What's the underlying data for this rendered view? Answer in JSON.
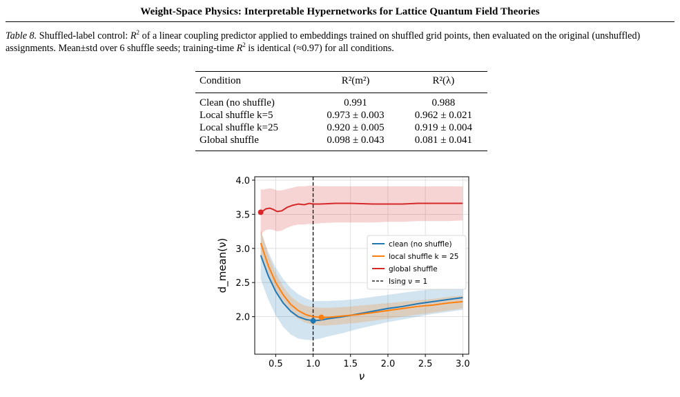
{
  "header": {
    "title": "Weight-Space Physics: Interpretable Hypernetworks for Lattice Quantum Field Theories"
  },
  "caption": {
    "label": "Table 8.",
    "p1": " Shuffled-label control: ",
    "r2": "R",
    "p2": " of a linear coupling predictor applied to embeddings trained on shuffled grid points, then evaluated on the original (unshuffled) assignments. Mean±std over 6 shuffle seeds; training-time ",
    "p3": " is identical (≈0.97) for all conditions."
  },
  "table": {
    "headers": [
      "Condition",
      "R²(m²)",
      "R²(λ)"
    ],
    "rows": [
      [
        "Clean (no shuffle)",
        "0.991",
        "0.988"
      ],
      [
        "Local shuffle k=5",
        "0.973 ± 0.003",
        "0.962 ± 0.021"
      ],
      [
        "Local shuffle k=25",
        "0.920 ± 0.005",
        "0.919 ± 0.004"
      ],
      [
        "Global shuffle",
        "0.098 ± 0.043",
        "0.081 ± 0.041"
      ]
    ]
  },
  "chart_data": {
    "type": "line",
    "xlabel": "ν",
    "ylabel": "d_mean(ν)",
    "xlim": [
      0.22,
      3.08
    ],
    "ylim": [
      1.45,
      4.05
    ],
    "xticks": [
      0.5,
      1.0,
      1.5,
      2.0,
      2.5,
      3.0
    ],
    "yticks": [
      2.0,
      2.5,
      3.0,
      3.5,
      4.0
    ],
    "xtick_labels": [
      "0.5",
      "1.0",
      "1.5",
      "2.0",
      "2.5",
      "3.0"
    ],
    "ytick_labels": [
      "2.0",
      "2.5",
      "3.0",
      "3.5",
      "4.0"
    ],
    "grid": true,
    "legend_position": "center-right",
    "series": [
      {
        "name": "clean (no shuffle)",
        "color": "#1f77b4",
        "x": [
          0.3,
          0.4,
          0.5,
          0.6,
          0.7,
          0.8,
          0.9,
          1.0,
          1.1,
          1.2,
          1.4,
          1.6,
          1.8,
          2.0,
          2.2,
          2.4,
          2.6,
          2.8,
          3.0
        ],
        "y": [
          2.9,
          2.6,
          2.37,
          2.2,
          2.08,
          2.0,
          1.96,
          1.94,
          1.95,
          1.97,
          2.0,
          2.04,
          2.08,
          2.12,
          2.15,
          2.19,
          2.22,
          2.25,
          2.28
        ],
        "lower": [
          2.55,
          2.25,
          2.02,
          1.85,
          1.74,
          1.68,
          1.66,
          1.66,
          1.68,
          1.71,
          1.76,
          1.82,
          1.87,
          1.92,
          1.96,
          2.0,
          2.04,
          2.07,
          2.1
        ],
        "upper": [
          3.25,
          2.95,
          2.72,
          2.55,
          2.42,
          2.33,
          2.27,
          2.23,
          2.23,
          2.23,
          2.24,
          2.26,
          2.29,
          2.32,
          2.35,
          2.38,
          2.4,
          2.43,
          2.46
        ],
        "min_marker": {
          "x": 1.0,
          "y": 1.94
        }
      },
      {
        "name": "local shuffle k = 25",
        "color": "#ff7f0e",
        "x": [
          0.3,
          0.4,
          0.5,
          0.6,
          0.7,
          0.8,
          0.9,
          1.0,
          1.1,
          1.2,
          1.4,
          1.6,
          1.8,
          2.0,
          2.2,
          2.4,
          2.6,
          2.8,
          3.0
        ],
        "y": [
          3.08,
          2.75,
          2.5,
          2.32,
          2.18,
          2.09,
          2.03,
          2.0,
          1.99,
          1.99,
          2.01,
          2.03,
          2.06,
          2.09,
          2.12,
          2.15,
          2.17,
          2.2,
          2.22
        ],
        "lower": [
          2.9,
          2.6,
          2.37,
          2.19,
          2.06,
          1.97,
          1.91,
          1.88,
          1.87,
          1.87,
          1.89,
          1.91,
          1.94,
          1.97,
          2.0,
          2.03,
          2.06,
          2.09,
          2.12
        ],
        "upper": [
          3.28,
          2.92,
          2.64,
          2.44,
          2.3,
          2.21,
          2.16,
          2.14,
          2.13,
          2.13,
          2.14,
          2.16,
          2.18,
          2.2,
          2.22,
          2.24,
          2.26,
          2.29,
          2.31
        ],
        "min_marker": {
          "x": 1.11,
          "y": 1.99
        }
      },
      {
        "name": "global shuffle",
        "color": "#d62728",
        "x": [
          0.3,
          0.33,
          0.37,
          0.42,
          0.47,
          0.52,
          0.58,
          0.65,
          0.72,
          0.8,
          0.88,
          0.95,
          1.0,
          1.1,
          1.3,
          1.5,
          1.8,
          2.0,
          2.2,
          2.4,
          2.6,
          2.8,
          3.0
        ],
        "y": [
          3.53,
          3.55,
          3.58,
          3.59,
          3.57,
          3.54,
          3.55,
          3.6,
          3.63,
          3.65,
          3.64,
          3.66,
          3.65,
          3.65,
          3.66,
          3.66,
          3.65,
          3.65,
          3.65,
          3.66,
          3.66,
          3.66,
          3.66
        ],
        "lower": [
          3.19,
          3.24,
          3.27,
          3.28,
          3.27,
          3.25,
          3.26,
          3.3,
          3.33,
          3.35,
          3.35,
          3.36,
          3.36,
          3.37,
          3.38,
          3.38,
          3.38,
          3.39,
          3.39,
          3.4,
          3.4,
          3.4,
          3.41
        ],
        "upper": [
          3.87,
          3.86,
          3.87,
          3.88,
          3.87,
          3.85,
          3.85,
          3.87,
          3.89,
          3.91,
          3.91,
          3.92,
          3.92,
          3.91,
          3.91,
          3.91,
          3.91,
          3.91,
          3.91,
          3.91,
          3.91,
          3.91,
          3.91
        ],
        "min_marker": {
          "x": 0.3,
          "y": 3.53
        }
      }
    ],
    "vline": {
      "x": 1.0,
      "name": "Ising ν = 1",
      "color": "#000000"
    }
  }
}
